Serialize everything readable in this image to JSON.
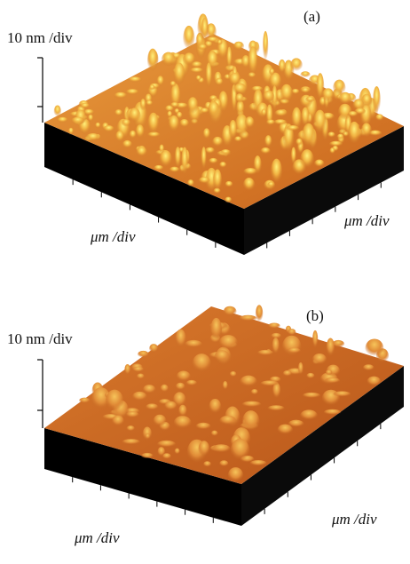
{
  "panels": [
    {
      "label": "(a)",
      "z_scale": "10 nm /div",
      "x_scale": "μm /div",
      "y_scale": "μm /div"
    },
    {
      "label": "(b)",
      "z_scale": "10 nm /div",
      "x_scale": "μm /div",
      "y_scale": "μm /div"
    }
  ]
}
